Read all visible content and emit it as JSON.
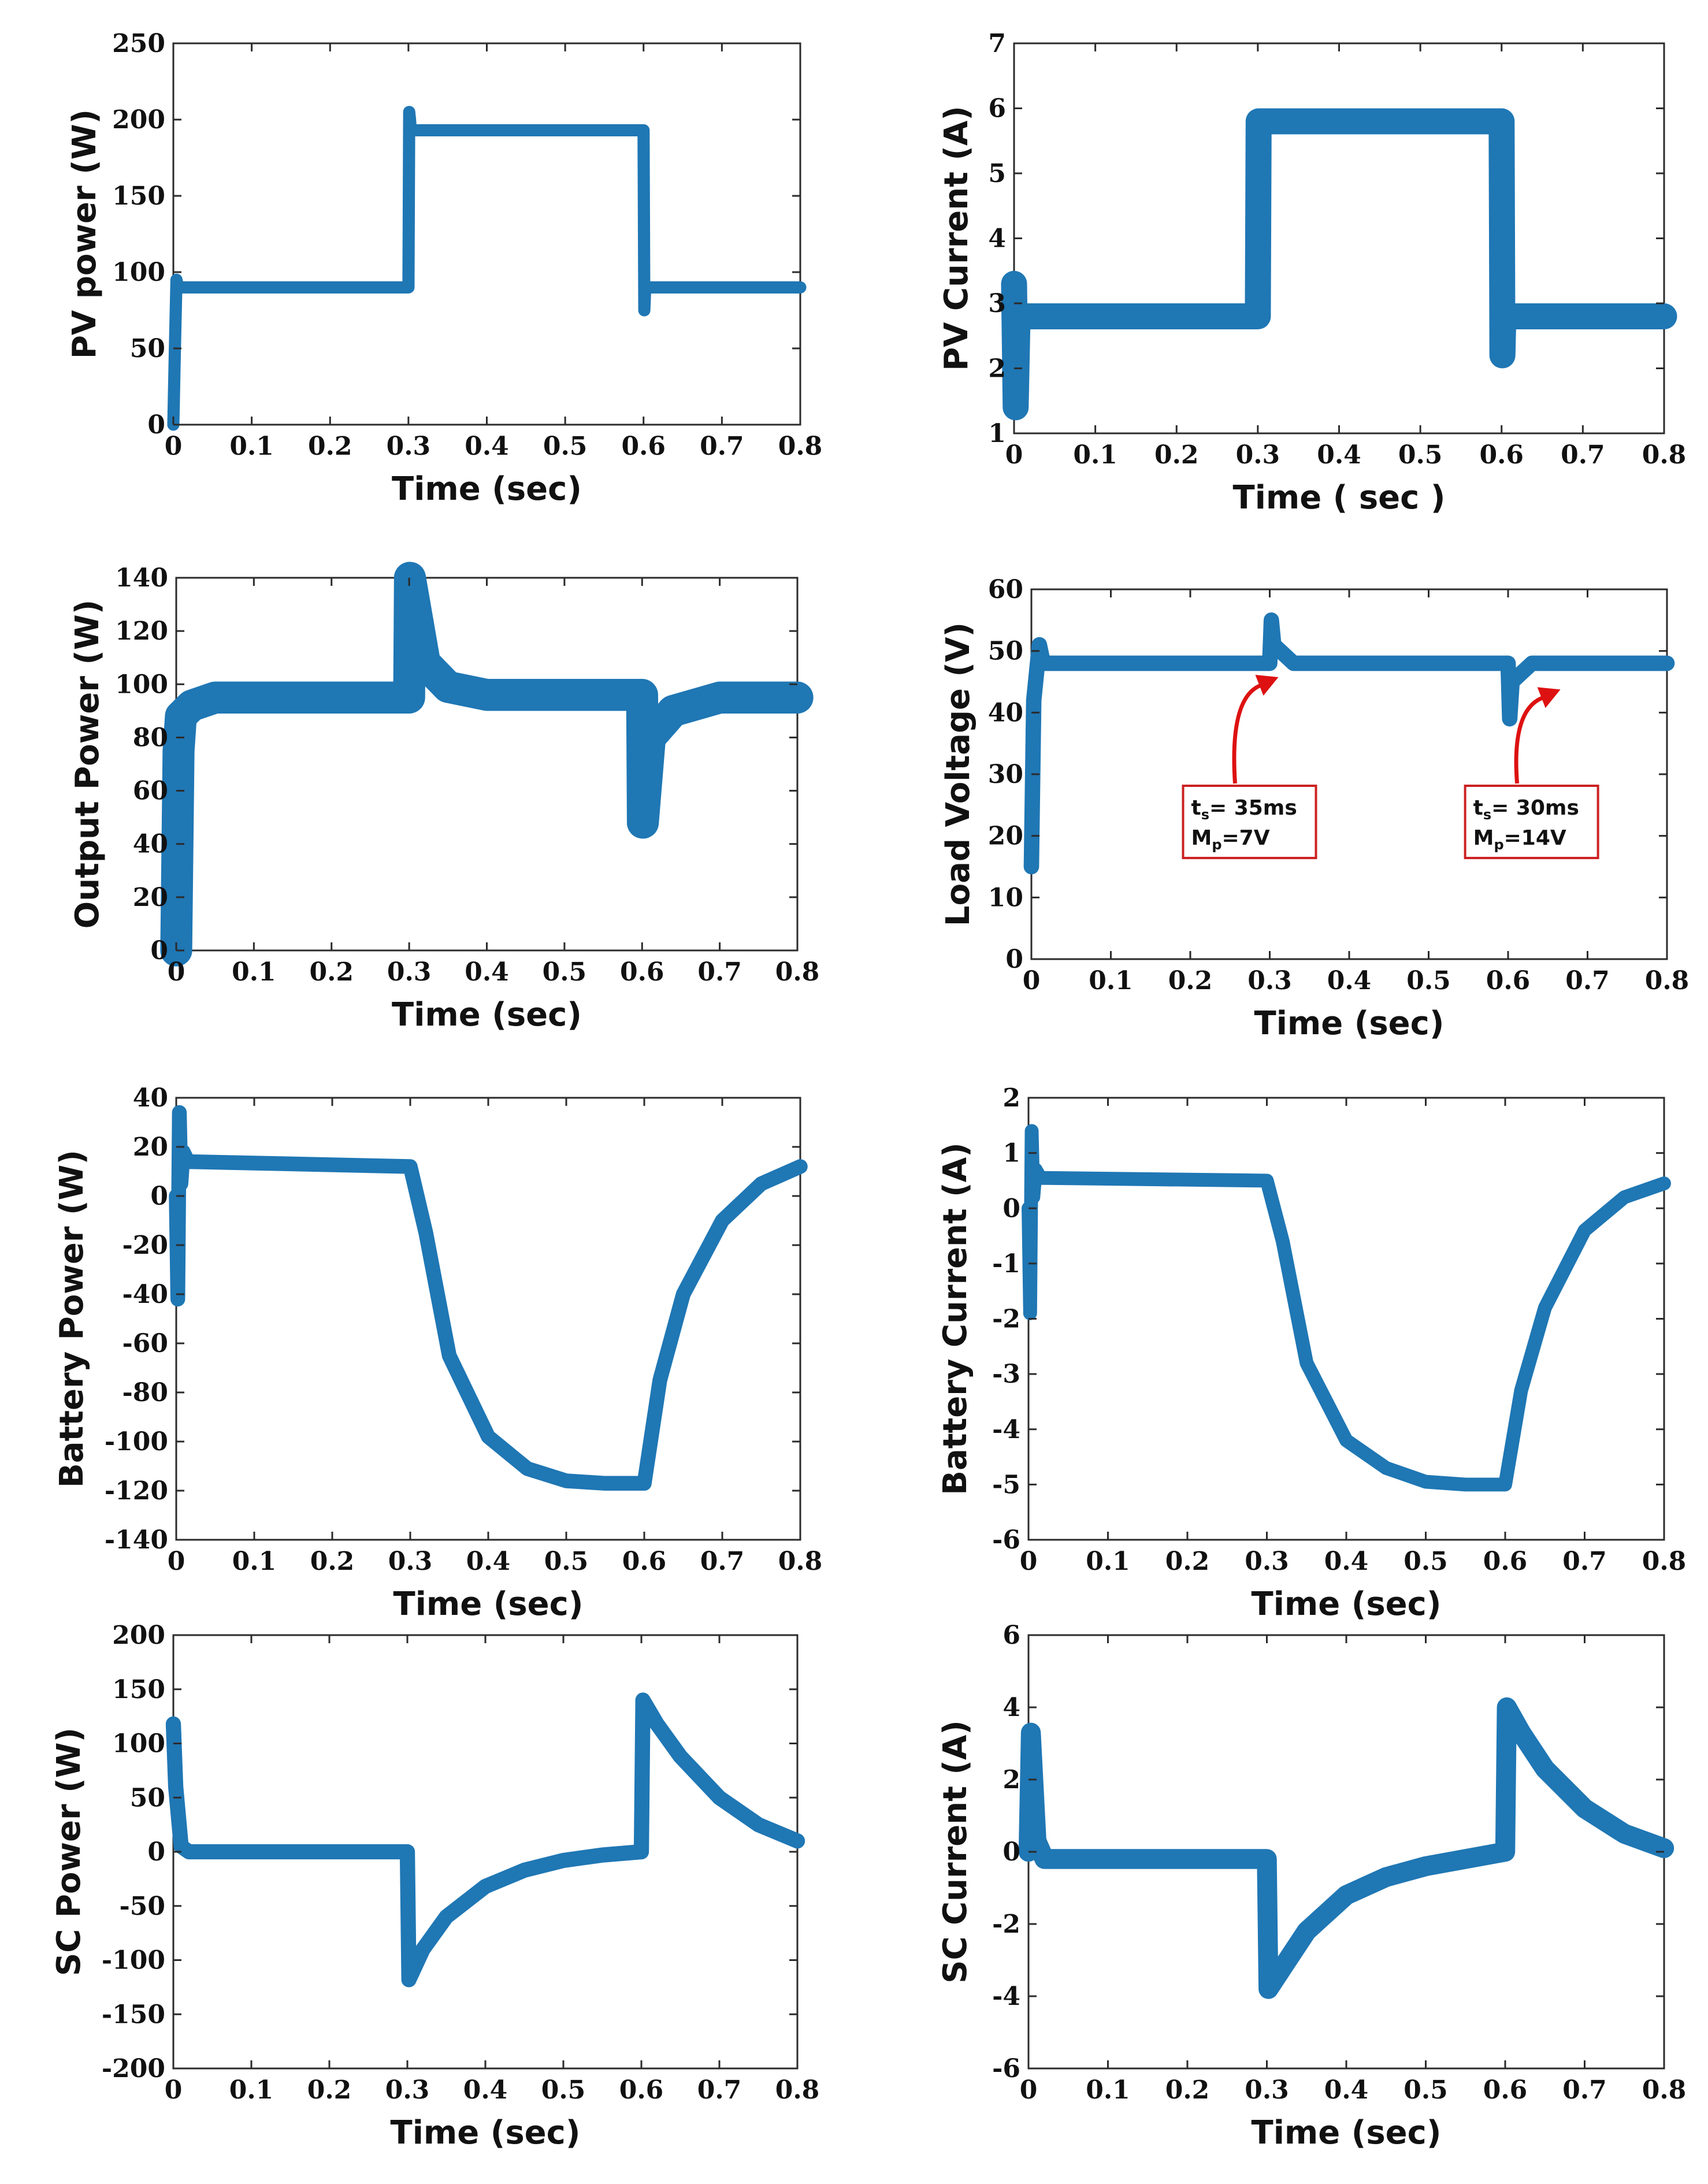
{
  "chart_data": [
    {
      "id": "pv_power",
      "type": "line",
      "ylabel": "PV power (W)",
      "xlabel": "Time (sec)",
      "xlim": [
        0,
        0.8
      ],
      "ylim": [
        0,
        250
      ],
      "xticks": [
        0,
        0.1,
        0.2,
        0.3,
        0.4,
        0.5,
        0.6,
        0.7,
        0.8
      ],
      "xtick_labels": [
        "0",
        "0.1",
        "0.2",
        "0.3",
        "0.4",
        "0.5",
        "0.6",
        "0.7",
        "0.8"
      ],
      "yticks": [
        0,
        50,
        100,
        150,
        200,
        250
      ],
      "ytick_labels": [
        "0",
        "50",
        "100",
        "150",
        "200",
        "250"
      ],
      "color": "#1f77b4",
      "series": [
        {
          "name": "PV power",
          "x": [
            0,
            0.002,
            0.004,
            0.006,
            0.3,
            0.301,
            0.302,
            0.303,
            0.6,
            0.601,
            0.602,
            0.604,
            0.8
          ],
          "values": [
            0,
            50,
            95,
            90,
            90,
            205,
            200,
            193,
            193,
            75,
            88,
            90,
            90
          ],
          "band": 8
        }
      ]
    },
    {
      "id": "pv_current",
      "type": "line",
      "ylabel": "PV Current (A)",
      "xlabel": "Time  ( sec )",
      "xlim": [
        0,
        0.8
      ],
      "ylim": [
        1,
        7
      ],
      "xticks": [
        0,
        0.1,
        0.2,
        0.3,
        0.4,
        0.5,
        0.6,
        0.7,
        0.8
      ],
      "xtick_labels": [
        "0",
        "0.1",
        "0.2",
        "0.3",
        "0.4",
        "0.5",
        "0.6",
        "0.7",
        "0.8"
      ],
      "yticks": [
        1,
        2,
        3,
        4,
        5,
        6,
        7
      ],
      "ytick_labels": [
        "1",
        "2",
        "3",
        "4",
        "5",
        "6",
        "7"
      ],
      "color": "#1f77b4",
      "series": [
        {
          "name": "PV current",
          "x": [
            0,
            0.002,
            0.004,
            0.006,
            0.3,
            0.301,
            0.303,
            0.6,
            0.601,
            0.602,
            0.604,
            0.8
          ],
          "values": [
            3.3,
            1.4,
            2.6,
            2.8,
            2.8,
            5.8,
            5.8,
            5.8,
            2.2,
            2.7,
            2.8,
            2.8
          ],
          "band": 0.4
        }
      ]
    },
    {
      "id": "output_power",
      "type": "line",
      "ylabel": "Output Power (W)",
      "xlabel": "Time (sec)",
      "xlim": [
        0,
        0.8
      ],
      "ylim": [
        0,
        140
      ],
      "xticks": [
        0,
        0.1,
        0.2,
        0.3,
        0.4,
        0.5,
        0.6,
        0.7,
        0.8
      ],
      "xtick_labels": [
        "0",
        "0.1",
        "0.2",
        "0.3",
        "0.4",
        "0.5",
        "0.6",
        "0.7",
        "0.8"
      ],
      "yticks": [
        0,
        20,
        40,
        60,
        80,
        100,
        120,
        140
      ],
      "ytick_labels": [
        "0",
        "20",
        "40",
        "60",
        "80",
        "100",
        "120",
        "140"
      ],
      "color": "#1f77b4",
      "series": [
        {
          "name": "Output power",
          "x": [
            0,
            0.003,
            0.006,
            0.02,
            0.05,
            0.3,
            0.301,
            0.32,
            0.35,
            0.4,
            0.6,
            0.601,
            0.61,
            0.64,
            0.7,
            0.8
          ],
          "values": [
            0,
            75,
            88,
            92,
            95,
            95,
            140,
            108,
            99,
            96,
            96,
            48,
            80,
            90,
            95,
            95
          ],
          "band": 12
        }
      ]
    },
    {
      "id": "load_voltage",
      "type": "line",
      "ylabel": "Load Voltage (V)",
      "xlabel": "Time (sec)",
      "xlim": [
        0,
        0.8
      ],
      "ylim": [
        0,
        60
      ],
      "xticks": [
        0,
        0.1,
        0.2,
        0.3,
        0.4,
        0.5,
        0.6,
        0.7,
        0.8
      ],
      "xtick_labels": [
        "0",
        "0.1",
        "0.2",
        "0.3",
        "0.4",
        "0.5",
        "0.6",
        "0.7",
        "0.8"
      ],
      "yticks": [
        0,
        10,
        20,
        30,
        40,
        50,
        60
      ],
      "ytick_labels": [
        "0",
        "10",
        "20",
        "30",
        "40",
        "50",
        "60"
      ],
      "color": "#1f77b4",
      "annotations": [
        {
          "ts": "35ms",
          "mp": "7V",
          "target_x": 0.26,
          "target_y": 48
        },
        {
          "ts": "30ms",
          "mp": "14V",
          "target_x": 0.615,
          "target_y": 46
        }
      ],
      "series": [
        {
          "name": "Load voltage",
          "x": [
            0,
            0.003,
            0.01,
            0.015,
            0.03,
            0.3,
            0.302,
            0.305,
            0.33,
            0.6,
            0.602,
            0.605,
            0.63,
            0.8
          ],
          "values": [
            15,
            42,
            51,
            48,
            48,
            48,
            55,
            51,
            48,
            48,
            39,
            45,
            48,
            48
          ],
          "band": 2.5
        }
      ]
    },
    {
      "id": "battery_power",
      "type": "line",
      "ylabel": "Battery Power (W)",
      "xlabel": "Time (sec)",
      "xlim": [
        0,
        0.8
      ],
      "ylim": [
        -140,
        40
      ],
      "xticks": [
        0,
        0.1,
        0.2,
        0.3,
        0.4,
        0.5,
        0.6,
        0.7,
        0.8
      ],
      "xtick_labels": [
        "0",
        "0.1",
        "0.2",
        "0.3",
        "0.4",
        "0.5",
        "0.6",
        "0.7",
        "0.8"
      ],
      "yticks": [
        -140,
        -120,
        -100,
        -80,
        -60,
        -40,
        -20,
        0,
        20,
        40
      ],
      "ytick_labels": [
        "-140",
        "-120",
        "-100",
        "-80",
        "-60",
        "-40",
        "-20",
        "0",
        "20",
        "40"
      ],
      "color": "#1f77b4",
      "series": [
        {
          "name": "Battery power",
          "x": [
            0,
            0.002,
            0.004,
            0.006,
            0.009,
            0.015,
            0.3,
            0.32,
            0.35,
            0.4,
            0.45,
            0.5,
            0.55,
            0.6,
            0.62,
            0.65,
            0.7,
            0.75,
            0.8
          ],
          "values": [
            0,
            -42,
            34,
            5,
            18,
            14,
            12,
            -15,
            -65,
            -98,
            -111,
            -116,
            -117,
            -117,
            -75,
            -40,
            -10,
            5,
            12
          ],
          "band": 6
        }
      ]
    },
    {
      "id": "battery_current",
      "type": "line",
      "ylabel": "Battery Current (A)",
      "xlabel": "Time (sec)",
      "xlim": [
        0,
        0.8
      ],
      "ylim": [
        -6,
        2
      ],
      "xticks": [
        0,
        0.1,
        0.2,
        0.3,
        0.4,
        0.5,
        0.6,
        0.7,
        0.8
      ],
      "xtick_labels": [
        "0",
        "0.1",
        "0.2",
        "0.3",
        "0.4",
        "0.5",
        "0.6",
        "0.7",
        "0.8"
      ],
      "yticks": [
        -6,
        -5,
        -4,
        -3,
        -2,
        -1,
        0,
        1,
        2
      ],
      "ytick_labels": [
        "-6",
        "-5",
        "-4",
        "-3",
        "-2",
        "-1",
        "0",
        "1",
        "2"
      ],
      "color": "#1f77b4",
      "series": [
        {
          "name": "Battery current",
          "x": [
            0,
            0.002,
            0.004,
            0.006,
            0.009,
            0.015,
            0.3,
            0.32,
            0.35,
            0.4,
            0.45,
            0.5,
            0.55,
            0.6,
            0.62,
            0.65,
            0.7,
            0.75,
            0.8
          ],
          "values": [
            0,
            -1.9,
            1.4,
            0.2,
            0.7,
            0.55,
            0.5,
            -0.6,
            -2.8,
            -4.2,
            -4.7,
            -4.95,
            -5.0,
            -5.0,
            -3.3,
            -1.8,
            -0.4,
            0.2,
            0.45
          ],
          "band": 0.25
        }
      ]
    },
    {
      "id": "sc_power",
      "type": "line",
      "ylabel": "SC Power (W)",
      "xlabel": "Time (sec)",
      "xlim": [
        0,
        0.8
      ],
      "ylim": [
        -200,
        200
      ],
      "xticks": [
        0,
        0.1,
        0.2,
        0.3,
        0.4,
        0.5,
        0.6,
        0.7,
        0.8
      ],
      "xtick_labels": [
        "0",
        "0.1",
        "0.2",
        "0.3",
        "0.4",
        "0.5",
        "0.6",
        "0.7",
        "0.8"
      ],
      "yticks": [
        -200,
        -150,
        -100,
        -50,
        0,
        50,
        100,
        150,
        200
      ],
      "ytick_labels": [
        "-200",
        "-150",
        "-100",
        "-50",
        "0",
        "50",
        "100",
        "150",
        "200"
      ],
      "color": "#1f77b4",
      "series": [
        {
          "name": "SC power",
          "x": [
            0,
            0.003,
            0.01,
            0.02,
            0.3,
            0.302,
            0.32,
            0.35,
            0.4,
            0.45,
            0.5,
            0.55,
            0.6,
            0.602,
            0.62,
            0.65,
            0.7,
            0.75,
            0.8
          ],
          "values": [
            118,
            60,
            5,
            0,
            0,
            -118,
            -90,
            -60,
            -32,
            -17,
            -8,
            -3,
            0,
            140,
            118,
            88,
            50,
            25,
            10
          ],
          "band": 14
        }
      ]
    },
    {
      "id": "sc_current",
      "type": "line",
      "ylabel": "SC Current (A)",
      "xlabel": "Time (sec)",
      "xlim": [
        0,
        0.8
      ],
      "ylim": [
        -6,
        6
      ],
      "xticks": [
        0,
        0.1,
        0.2,
        0.3,
        0.4,
        0.5,
        0.6,
        0.7,
        0.8
      ],
      "xtick_labels": [
        "0",
        "0.1",
        "0.2",
        "0.3",
        "0.4",
        "0.5",
        "0.6",
        "0.7",
        "0.8"
      ],
      "yticks": [
        -6,
        -4,
        -2,
        0,
        2,
        4,
        6
      ],
      "ytick_labels": [
        "-6",
        "-4",
        "-2",
        "0",
        "2",
        "4",
        "6"
      ],
      "color": "#1f77b4",
      "series": [
        {
          "name": "SC current",
          "x": [
            0,
            0.003,
            0.01,
            0.02,
            0.3,
            0.302,
            0.32,
            0.35,
            0.4,
            0.45,
            0.5,
            0.55,
            0.6,
            0.602,
            0.62,
            0.65,
            0.7,
            0.75,
            0.8
          ],
          "values": [
            0,
            3.3,
            0.3,
            -0.2,
            -0.2,
            -3.8,
            -3.2,
            -2.2,
            -1.2,
            -0.7,
            -0.4,
            -0.2,
            0,
            4.0,
            3.3,
            2.3,
            1.2,
            0.5,
            0.1
          ],
          "band": 0.55
        }
      ]
    }
  ]
}
